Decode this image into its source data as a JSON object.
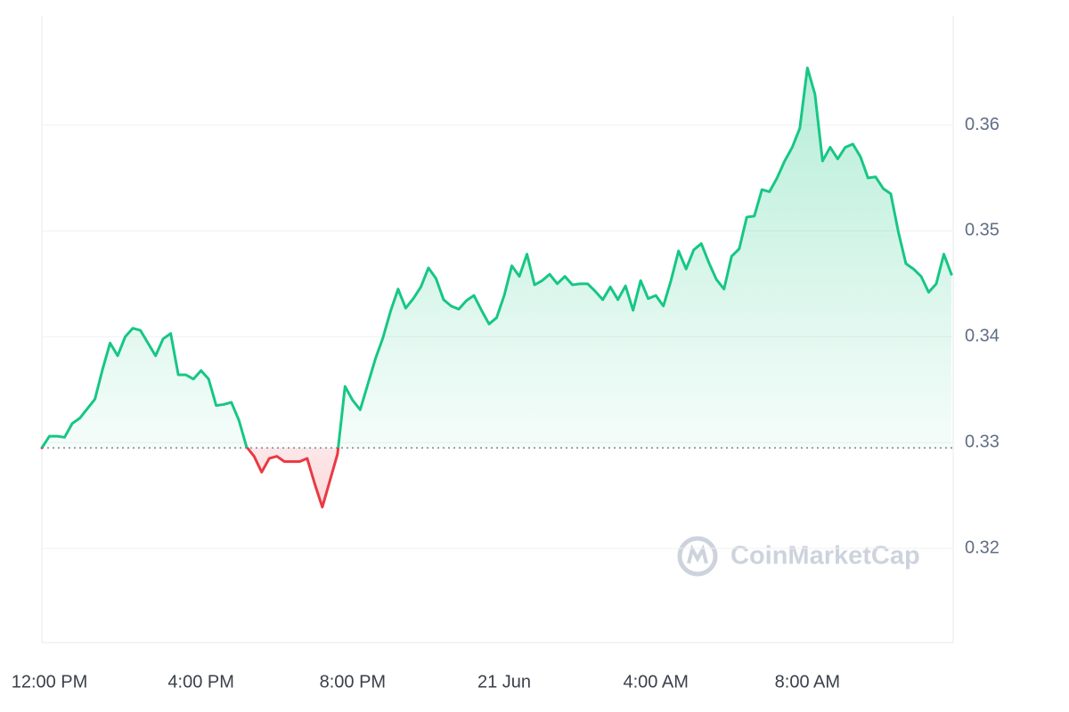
{
  "chart_data": {
    "type": "line",
    "watermark": "CoinMarketCap",
    "categories": [
      null,
      "12:00 PM",
      null,
      null,
      null,
      null,
      null,
      null,
      null,
      null,
      null,
      null,
      null,
      null,
      null,
      null,
      null,
      null,
      null,
      null,
      null,
      "4:00 PM",
      null,
      null,
      null,
      null,
      null,
      null,
      null,
      null,
      null,
      null,
      null,
      null,
      null,
      null,
      null,
      null,
      null,
      null,
      null,
      "8:00 PM",
      null,
      null,
      null,
      null,
      null,
      null,
      null,
      null,
      null,
      null,
      null,
      null,
      null,
      null,
      null,
      null,
      null,
      null,
      null,
      "21 Jun",
      null,
      null,
      null,
      null,
      null,
      null,
      null,
      null,
      null,
      null,
      null,
      null,
      null,
      null,
      null,
      null,
      null,
      null,
      null,
      "4:00 AM",
      null,
      null,
      null,
      null,
      null,
      null,
      null,
      null,
      null,
      null,
      null,
      null,
      null,
      null,
      null,
      null,
      null,
      null,
      null,
      "8:00 AM",
      null,
      null,
      null,
      null,
      null,
      null,
      null,
      null,
      null,
      null,
      null,
      null,
      null,
      null,
      null,
      null,
      null,
      null,
      null
    ],
    "values": [
      0.3295,
      0.3306,
      0.3306,
      0.3305,
      0.3318,
      0.3323,
      0.3332,
      0.3341,
      0.3369,
      0.3394,
      0.3382,
      0.34,
      0.3408,
      0.3406,
      0.3394,
      0.3382,
      0.3398,
      0.3403,
      0.3364,
      0.3364,
      0.336,
      0.3368,
      0.336,
      0.3335,
      0.3336,
      0.3338,
      0.3321,
      0.3296,
      0.3287,
      0.3272,
      0.3285,
      0.3287,
      0.3282,
      0.3282,
      0.3282,
      0.3285,
      0.3261,
      0.3239,
      0.3264,
      0.3289,
      0.3353,
      0.334,
      0.3331,
      0.3355,
      0.3379,
      0.3399,
      0.3424,
      0.3445,
      0.3427,
      0.3436,
      0.3447,
      0.3465,
      0.3455,
      0.3435,
      0.3429,
      0.3426,
      0.3434,
      0.3439,
      0.3425,
      0.3412,
      0.3418,
      0.3439,
      0.3467,
      0.3457,
      0.3478,
      0.3449,
      0.3453,
      0.3459,
      0.345,
      0.3457,
      0.3449,
      0.345,
      0.345,
      0.3443,
      0.3435,
      0.3447,
      0.3435,
      0.3448,
      0.3425,
      0.3453,
      0.3436,
      0.3439,
      0.3429,
      0.3453,
      0.3481,
      0.3464,
      0.3482,
      0.3488,
      0.347,
      0.3454,
      0.3445,
      0.3476,
      0.3483,
      0.3513,
      0.3514,
      0.3539,
      0.3537,
      0.355,
      0.3566,
      0.3579,
      0.3597,
      0.3654,
      0.3629,
      0.3566,
      0.3579,
      0.3568,
      0.3579,
      0.3582,
      0.357,
      0.355,
      0.3551,
      0.354,
      0.3535,
      0.3499,
      0.3469,
      0.3464,
      0.3457,
      0.3442,
      0.345,
      0.3478,
      0.3459
    ],
    "baseline": 0.3295,
    "up_color": "#16c784",
    "down_color": "#ea3943",
    "ylim": [
      0.3111,
      0.3703
    ],
    "yticks": [
      0.32,
      0.33,
      0.34,
      0.35,
      0.36
    ],
    "grid": true
  }
}
